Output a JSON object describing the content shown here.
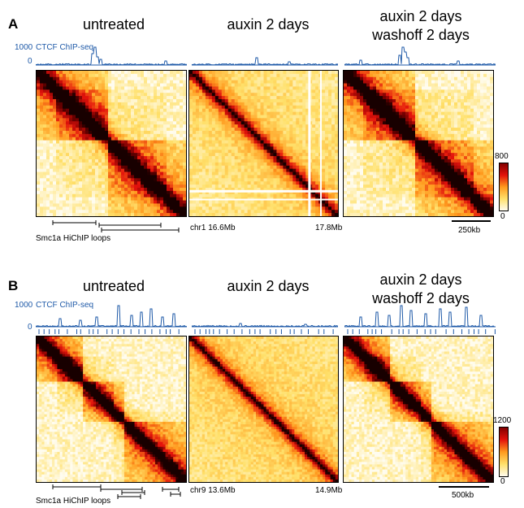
{
  "panels": [
    {
      "label": "A",
      "conditions": [
        "untreated",
        "auxin 2 days",
        "auxin 2 days washoff 2 days"
      ],
      "condition_line2": "washoff 2 days",
      "condition_line1": "auxin 2 days",
      "track_label": "CTCF ChIP-seq",
      "track_max": "1000",
      "track_min": "0",
      "coord_chr_start": "chr1 16.6Mb",
      "coord_end": "17.8Mb",
      "loops_label": "Smc1a HiChIP loops",
      "colorbar_max": "800",
      "colorbar_min": "0",
      "scale_label": "250kb"
    },
    {
      "label": "B",
      "conditions": [
        "untreated",
        "auxin 2 days",
        "auxin 2 days washoff 2 days"
      ],
      "condition_line2": "washoff 2 days",
      "condition_line1": "auxin 2 days",
      "track_label": "CTCF ChIP-seq",
      "track_max": "1000",
      "track_min": "0",
      "coord_chr_start": "chr9 13.6Mb",
      "coord_end": "14.9Mb",
      "loops_label": "Smc1a HiChIP loops",
      "colorbar_max": "1200",
      "colorbar_min": "0",
      "scale_label": "500kb"
    }
  ],
  "colors": {
    "track_blue": "#1f5aa8",
    "heat_low": "#fffcef",
    "heat_mid": "#ff9a1e",
    "heat_high": "#e3120c",
    "heat_max": "#1a0000"
  }
}
